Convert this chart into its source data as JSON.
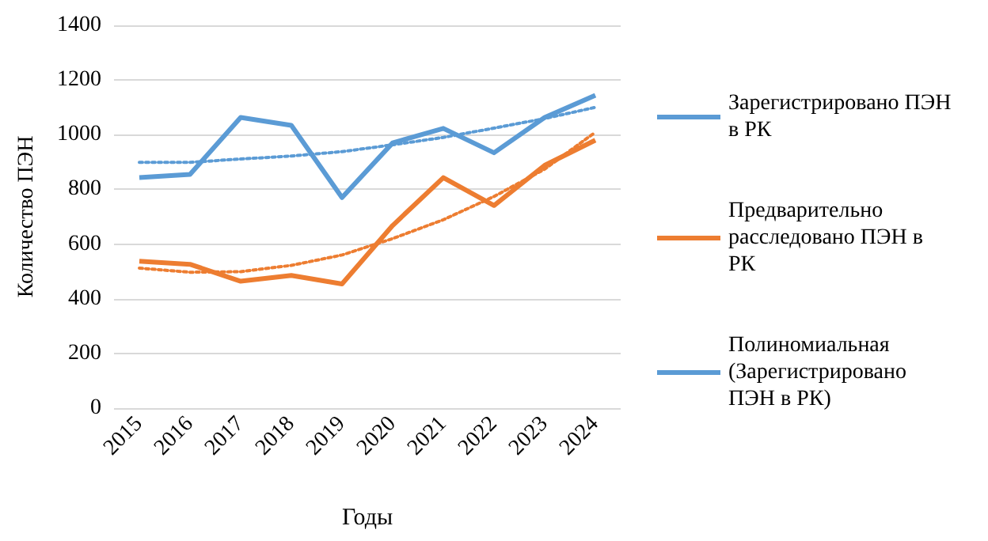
{
  "chart_data": {
    "type": "line",
    "xlabel": "Годы",
    "ylabel": "Количество ПЭН",
    "categories": [
      "2015",
      "2016",
      "2017",
      "2018",
      "2019",
      "2020",
      "2021",
      "2022",
      "2023",
      "2024"
    ],
    "series": [
      {
        "name": "Зарегистрировано ПЭН в РК",
        "color": "#5b9bd5",
        "values": [
          843,
          855,
          1063,
          1034,
          770,
          970,
          1023,
          934,
          1063,
          1144
        ]
      },
      {
        "name": "Предварительно расследовано ПЭН в РК",
        "color": "#ed7d31",
        "values": [
          537,
          526,
          464,
          485,
          454,
          668,
          843,
          741,
          888,
          980
        ]
      },
      {
        "name": "Полиномиальная (Зарегистрировано ПЭН в РК)",
        "color": "#5b9bd5",
        "line_style": "dotted",
        "values": [
          899,
          899,
          911,
          922,
          938,
          963,
          990,
          1024,
          1059,
          1100
        ]
      },
      {
        "color": "#ed7d31",
        "line_style": "dotted",
        "values": [
          512,
          497,
          499,
          522,
          560,
          620,
          689,
          774,
          874,
          1009
        ]
      }
    ],
    "ylim": [
      0,
      1400
    ],
    "yticks": [
      0,
      200,
      400,
      600,
      800,
      1000,
      1200,
      1400
    ],
    "grid": "y",
    "legend": "right",
    "marker": "none"
  }
}
